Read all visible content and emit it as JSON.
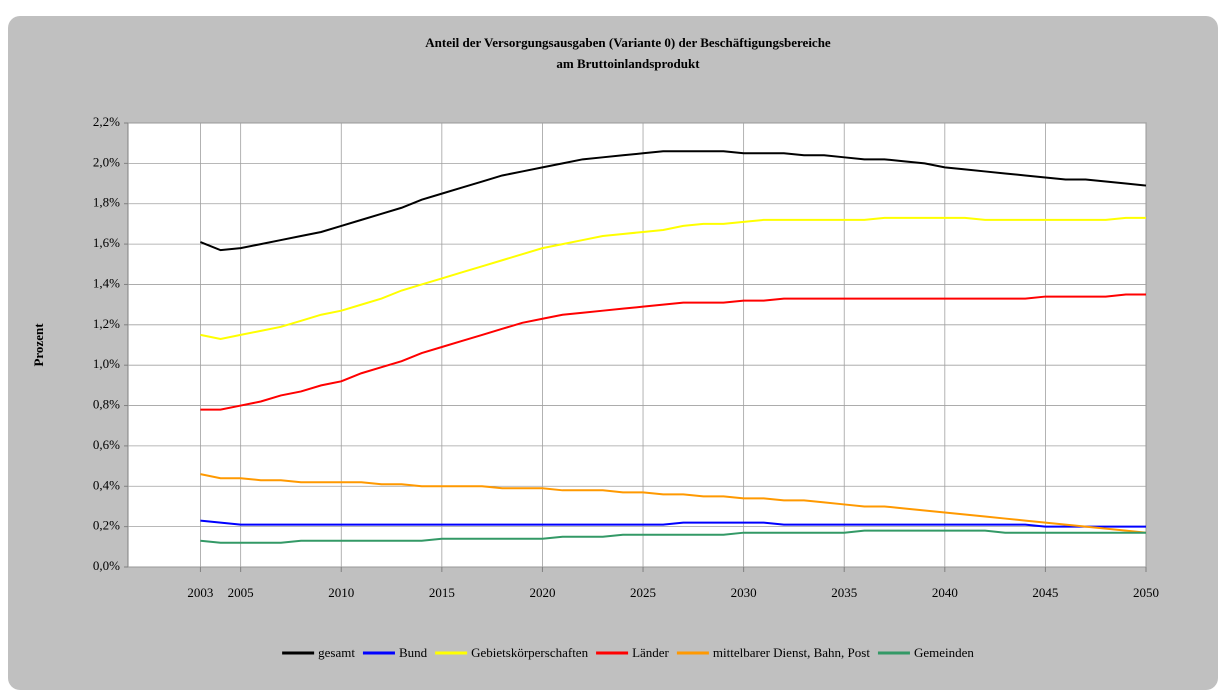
{
  "chart_data": {
    "type": "line",
    "title": [
      "Anteil der Versorgungsausgaben (Variante 0) der Beschäftigungsbereiche",
      "am Bruttoinlandsprodukt"
    ],
    "ylabel": "Prozent",
    "x": [
      2003,
      2004,
      2005,
      2006,
      2007,
      2008,
      2009,
      2010,
      2011,
      2012,
      2013,
      2014,
      2015,
      2016,
      2017,
      2018,
      2019,
      2020,
      2021,
      2022,
      2023,
      2024,
      2025,
      2026,
      2027,
      2028,
      2029,
      2030,
      2031,
      2032,
      2033,
      2034,
      2035,
      2036,
      2037,
      2038,
      2039,
      2040,
      2041,
      2042,
      2043,
      2044,
      2045,
      2046,
      2047,
      2048,
      2049,
      2050
    ],
    "xlim": [
      1999.4,
      2050
    ],
    "xticks": [
      2003,
      2005,
      2010,
      2015,
      2020,
      2025,
      2030,
      2035,
      2040,
      2045,
      2050
    ],
    "ylim": [
      0,
      2.2
    ],
    "yticks": [
      {
        "value": 0,
        "label": "0,0%"
      },
      {
        "value": 0.2,
        "label": "0,2%"
      },
      {
        "value": 0.4,
        "label": "0,4%"
      },
      {
        "value": 0.6,
        "label": "0,6%"
      },
      {
        "value": 0.8,
        "label": "0,8%"
      },
      {
        "value": 1.0,
        "label": "1,0%"
      },
      {
        "value": 1.2,
        "label": "1,2%"
      },
      {
        "value": 1.4,
        "label": "1,4%"
      },
      {
        "value": 1.6,
        "label": "1,6%"
      },
      {
        "value": 1.8,
        "label": "1,8%"
      },
      {
        "value": 2.0,
        "label": "2,0%"
      },
      {
        "value": 2.2,
        "label": "2,2%"
      }
    ],
    "grid": true,
    "legend": "bottom",
    "series": [
      {
        "name": "gesamt",
        "color": "#000000",
        "values": [
          1.61,
          1.57,
          1.58,
          1.6,
          1.62,
          1.64,
          1.66,
          1.69,
          1.72,
          1.75,
          1.78,
          1.82,
          1.85,
          1.88,
          1.91,
          1.94,
          1.96,
          1.98,
          2.0,
          2.02,
          2.03,
          2.04,
          2.05,
          2.06,
          2.06,
          2.06,
          2.06,
          2.05,
          2.05,
          2.05,
          2.04,
          2.04,
          2.03,
          2.02,
          2.02,
          2.01,
          2.0,
          1.98,
          1.97,
          1.96,
          1.95,
          1.94,
          1.93,
          1.92,
          1.92,
          1.91,
          1.9,
          1.89
        ]
      },
      {
        "name": "Bund",
        "color": "#0000ff",
        "values": [
          0.23,
          0.22,
          0.21,
          0.21,
          0.21,
          0.21,
          0.21,
          0.21,
          0.21,
          0.21,
          0.21,
          0.21,
          0.21,
          0.21,
          0.21,
          0.21,
          0.21,
          0.21,
          0.21,
          0.21,
          0.21,
          0.21,
          0.21,
          0.21,
          0.22,
          0.22,
          0.22,
          0.22,
          0.22,
          0.21,
          0.21,
          0.21,
          0.21,
          0.21,
          0.21,
          0.21,
          0.21,
          0.21,
          0.21,
          0.21,
          0.21,
          0.21,
          0.2,
          0.2,
          0.2,
          0.2,
          0.2,
          0.2
        ]
      },
      {
        "name": "Gebietskörperschaften",
        "color": "#ffff00",
        "values": [
          1.15,
          1.13,
          1.15,
          1.17,
          1.19,
          1.22,
          1.25,
          1.27,
          1.3,
          1.33,
          1.37,
          1.4,
          1.43,
          1.46,
          1.49,
          1.52,
          1.55,
          1.58,
          1.6,
          1.62,
          1.64,
          1.65,
          1.66,
          1.67,
          1.69,
          1.7,
          1.7,
          1.71,
          1.72,
          1.72,
          1.72,
          1.72,
          1.72,
          1.72,
          1.73,
          1.73,
          1.73,
          1.73,
          1.73,
          1.72,
          1.72,
          1.72,
          1.72,
          1.72,
          1.72,
          1.72,
          1.73,
          1.73
        ]
      },
      {
        "name": "Länder",
        "color": "#ff0000",
        "values": [
          0.78,
          0.78,
          0.8,
          0.82,
          0.85,
          0.87,
          0.9,
          0.92,
          0.96,
          0.99,
          1.02,
          1.06,
          1.09,
          1.12,
          1.15,
          1.18,
          1.21,
          1.23,
          1.25,
          1.26,
          1.27,
          1.28,
          1.29,
          1.3,
          1.31,
          1.31,
          1.31,
          1.32,
          1.32,
          1.33,
          1.33,
          1.33,
          1.33,
          1.33,
          1.33,
          1.33,
          1.33,
          1.33,
          1.33,
          1.33,
          1.33,
          1.33,
          1.34,
          1.34,
          1.34,
          1.34,
          1.35,
          1.35
        ]
      },
      {
        "name": "mittelbarer Dienst, Bahn, Post",
        "color": "#ff9900",
        "values": [
          0.46,
          0.44,
          0.44,
          0.43,
          0.43,
          0.42,
          0.42,
          0.42,
          0.42,
          0.41,
          0.41,
          0.4,
          0.4,
          0.4,
          0.4,
          0.39,
          0.39,
          0.39,
          0.38,
          0.38,
          0.38,
          0.37,
          0.37,
          0.36,
          0.36,
          0.35,
          0.35,
          0.34,
          0.34,
          0.33,
          0.33,
          0.32,
          0.31,
          0.3,
          0.3,
          0.29,
          0.28,
          0.27,
          0.26,
          0.25,
          0.24,
          0.23,
          0.22,
          0.21,
          0.2,
          0.19,
          0.18,
          0.17
        ]
      },
      {
        "name": "Gemeinden",
        "color": "#339966",
        "values": [
          0.13,
          0.12,
          0.12,
          0.12,
          0.12,
          0.13,
          0.13,
          0.13,
          0.13,
          0.13,
          0.13,
          0.13,
          0.14,
          0.14,
          0.14,
          0.14,
          0.14,
          0.14,
          0.15,
          0.15,
          0.15,
          0.16,
          0.16,
          0.16,
          0.16,
          0.16,
          0.16,
          0.17,
          0.17,
          0.17,
          0.17,
          0.17,
          0.17,
          0.18,
          0.18,
          0.18,
          0.18,
          0.18,
          0.18,
          0.18,
          0.17,
          0.17,
          0.17,
          0.17,
          0.17,
          0.17,
          0.17,
          0.17
        ]
      }
    ]
  }
}
